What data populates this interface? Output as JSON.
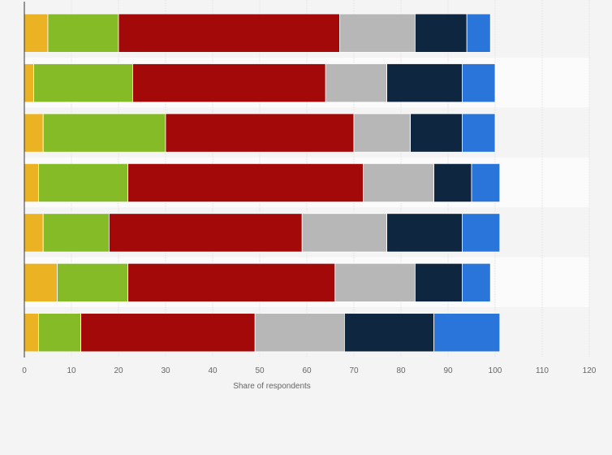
{
  "chart_data": {
    "type": "bar",
    "orientation": "horizontal",
    "stacked": true,
    "xlabel": "Share of respondents",
    "xlim": [
      0,
      120
    ],
    "x_ticks": [
      "0",
      "10",
      "20",
      "30",
      "40",
      "50",
      "60",
      "70",
      "80",
      "90",
      "100",
      "110",
      "120"
    ],
    "grid": "vertical",
    "legend": "none",
    "categories": [
      "",
      "",
      "",
      "",
      "",
      "",
      ""
    ],
    "series": [
      {
        "color": "#ebb223",
        "values": [
          5,
          2,
          4,
          3,
          4,
          7,
          3
        ]
      },
      {
        "color": "#85bb26",
        "values": [
          15,
          21,
          26,
          19,
          14,
          15,
          9
        ]
      },
      {
        "color": "#a30909",
        "values": [
          47,
          41,
          40,
          50,
          41,
          44,
          37
        ]
      },
      {
        "color": "#b7b7b7",
        "values": [
          16,
          13,
          12,
          15,
          18,
          17,
          19
        ]
      },
      {
        "color": "#0f2640",
        "values": [
          11,
          16,
          11,
          8,
          16,
          10,
          19
        ]
      },
      {
        "color": "#2a75d9",
        "values": [
          5,
          7,
          7,
          6,
          8,
          6,
          14
        ]
      }
    ]
  }
}
